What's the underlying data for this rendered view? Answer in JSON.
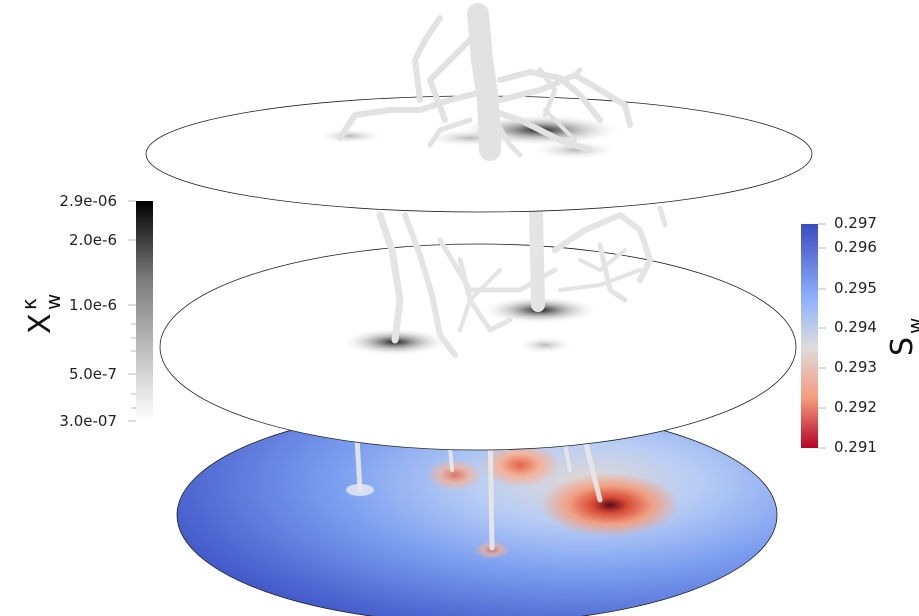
{
  "colorbar_left": {
    "symbol": "X",
    "superscript": "κ",
    "subscript": "w",
    "colormap": "grayscale",
    "min_color": "#ffffff",
    "max_color": "#000000",
    "range": [
      3e-07,
      2.9e-06
    ],
    "scale": "log",
    "ticks": [
      {
        "value": 2.9e-06,
        "label": "2.9e-06"
      },
      {
        "value": 2e-06,
        "label": "2.0e-6"
      },
      {
        "value": 1e-06,
        "label": "1.0e-6"
      },
      {
        "value": 5e-07,
        "label": "5.0e-7"
      },
      {
        "value": 3e-07,
        "label": "3.0e-07"
      }
    ]
  },
  "colorbar_right": {
    "symbol": "S",
    "subscript": "w",
    "colormap": "coolwarm (reversed)",
    "colors": [
      "#3b4cc0",
      "#8db0fe",
      "#dddcdc",
      "#f49a7b",
      "#b40426"
    ],
    "range": [
      0.291,
      0.297
    ],
    "scale": "linear",
    "ticks": [
      {
        "value": 0.297,
        "label": "0.297"
      },
      {
        "value": 0.296,
        "label": "0.296"
      },
      {
        "value": 0.295,
        "label": "0.295"
      },
      {
        "value": 0.294,
        "label": "0.294"
      },
      {
        "value": 0.293,
        "label": "0.293"
      },
      {
        "value": 0.292,
        "label": "0.292"
      },
      {
        "value": 0.291,
        "label": "0.291"
      }
    ]
  },
  "scene": {
    "slices": [
      "top-slice (X_w^κ)",
      "middle-slice (X_w^κ)",
      "bottom-slice (S_w)"
    ],
    "root_color": "#e6e6e6"
  }
}
